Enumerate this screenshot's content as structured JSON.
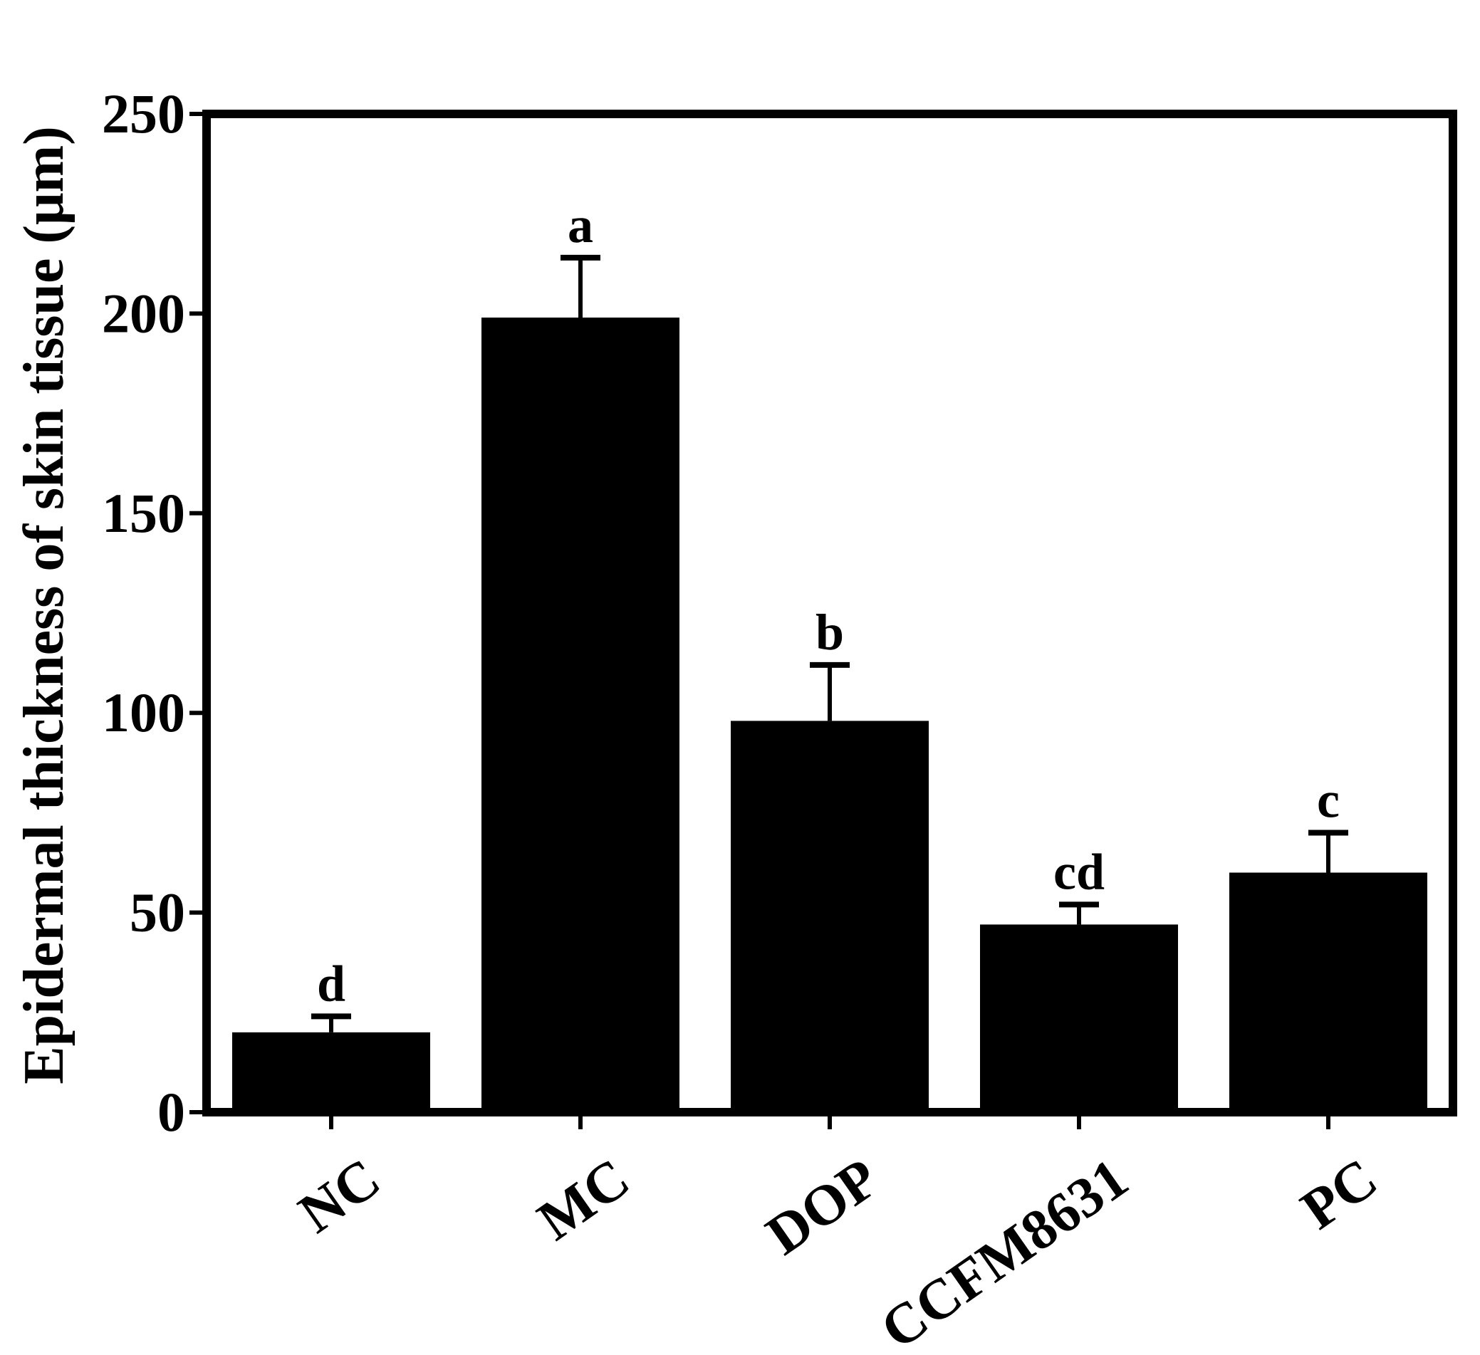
{
  "chart_data": {
    "type": "bar",
    "title": "",
    "xlabel": "",
    "ylabel": "Epidermal thickness of skin tissue (μm)",
    "categories": [
      "NC",
      "MC",
      "DOP",
      "CCFM8631",
      "PC"
    ],
    "values": [
      20,
      199,
      98,
      47,
      60
    ],
    "error_upper": [
      24,
      214,
      112,
      52,
      70
    ],
    "significance_labels": [
      "d",
      "a",
      "b",
      "cd",
      "c"
    ],
    "ylim": [
      0,
      250
    ],
    "yticks": [
      0,
      50,
      100,
      150,
      200,
      250
    ],
    "ytick_labels": [
      "0",
      "50",
      "100",
      "150",
      "200",
      "250"
    ],
    "grid": false,
    "legend": "none",
    "colors": {
      "bar": "#000000",
      "axis": "#000000",
      "background": "#ffffff"
    }
  }
}
